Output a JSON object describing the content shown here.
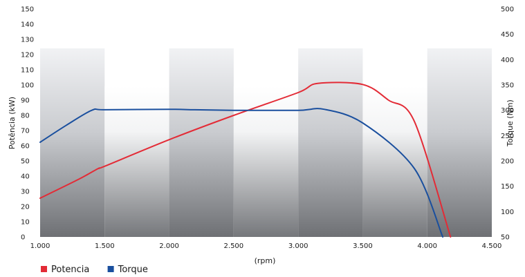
{
  "chart_data": {
    "type": "line",
    "title": "",
    "xlabel": "(rpm)",
    "y_left_label": "Potência (kW)",
    "y_right_label": "Torque (Nm)",
    "xlim": [
      1000,
      4500
    ],
    "ylim_left": [
      0,
      150
    ],
    "ylim_right": [
      50,
      500
    ],
    "x_ticks": [
      1000,
      1500,
      2000,
      2500,
      3000,
      3500,
      4000,
      4500
    ],
    "x_tick_labels": [
      "1.000",
      "1.500",
      "2.000",
      "2.500",
      "3.000",
      "3.500",
      "4.000",
      "4.500"
    ],
    "y_left_ticks": [
      0,
      10,
      20,
      30,
      40,
      50,
      60,
      70,
      80,
      90,
      100,
      110,
      120,
      130,
      140,
      150
    ],
    "y_right_ticks": [
      50,
      100,
      150,
      200,
      250,
      300,
      350,
      400,
      450,
      500
    ],
    "grid": false,
    "legend_position": "bottom-left",
    "series": [
      {
        "name": "Potencia",
        "axis": "left",
        "color": "#e32b36",
        "points": [
          [
            1000,
            25.5
          ],
          [
            1300,
            38
          ],
          [
            1450,
            45
          ],
          [
            1500,
            46.5
          ],
          [
            2000,
            64
          ],
          [
            2500,
            80
          ],
          [
            3000,
            95
          ],
          [
            3150,
            101
          ],
          [
            3500,
            100.3
          ],
          [
            3700,
            90
          ],
          [
            3900,
            76
          ],
          [
            4180,
            0
          ]
        ]
      },
      {
        "name": "Torque",
        "axis": "right",
        "color": "#1a4f9e",
        "points": [
          [
            1000,
            237
          ],
          [
            1200,
            270
          ],
          [
            1400,
            300
          ],
          [
            1500,
            301
          ],
          [
            2000,
            302
          ],
          [
            2200,
            301
          ],
          [
            2500,
            300
          ],
          [
            3000,
            300
          ],
          [
            3200,
            302
          ],
          [
            3500,
            275
          ],
          [
            3900,
            185
          ],
          [
            4120,
            50
          ]
        ]
      }
    ]
  }
}
